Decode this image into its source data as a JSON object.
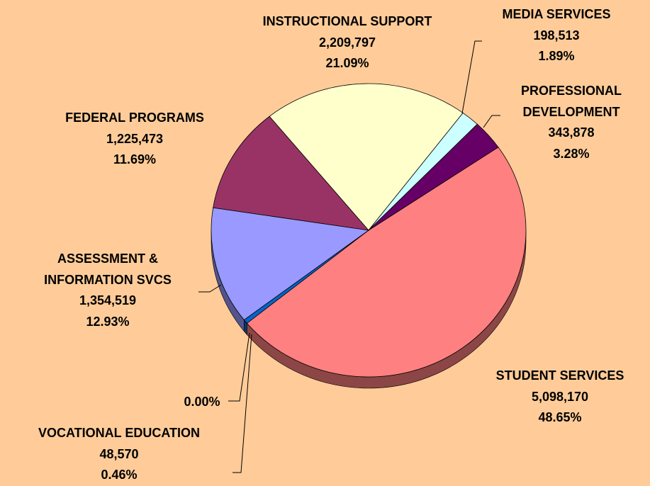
{
  "chart_data": {
    "type": "pie",
    "categories": [
      "STUDENT SERVICES",
      "VOCATIONAL EDUCATION",
      null,
      "ASSESSMENT & INFORMATION SVCS",
      "FEDERAL PROGRAMS",
      "INSTRUCTIONAL SUPPORT",
      "MEDIA SERVICES",
      "PROFESSIONAL DEVELOPMENT"
    ],
    "values": [
      5098170,
      48570,
      0,
      1354519,
      1225473,
      2209797,
      198513,
      343878
    ],
    "value_labels": [
      "5,098,170",
      "48,570",
      null,
      "1,354,519",
      "1,225,473",
      "2,209,797",
      "198,513",
      "343,878"
    ],
    "percents": [
      48.65,
      0.46,
      0,
      12.93,
      11.69,
      21.09,
      1.89,
      3.28
    ],
    "percent_labels": [
      "48.65%",
      "0.46%",
      "0.00%",
      "12.93%",
      "11.69%",
      "21.09%",
      "1.89%",
      "3.28%"
    ],
    "colors": [
      "#ff8080",
      "#0066cc",
      "#808080",
      "#9999ff",
      "#993366",
      "#ffffcc",
      "#ccffff",
      "#660066"
    ],
    "background": "#ffcc99"
  }
}
